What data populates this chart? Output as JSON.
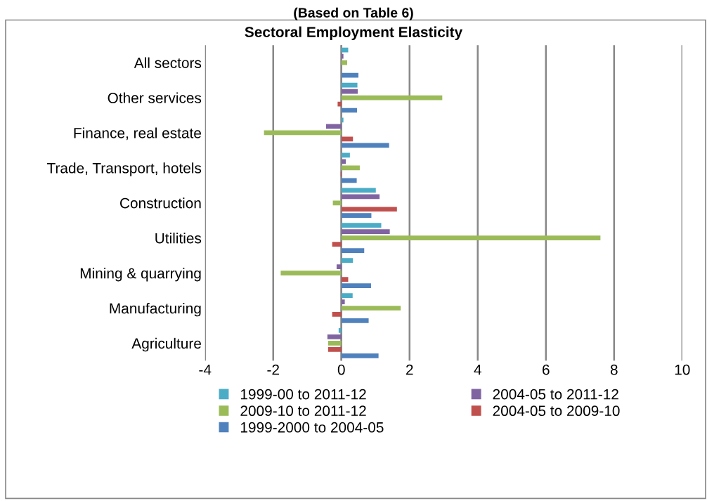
{
  "chart_data": {
    "type": "bar",
    "orientation": "horizontal",
    "title": "Sectoral Employment Elasticity",
    "annotations": [
      "(Based on Table 6)"
    ],
    "categories": [
      "All sectors",
      "Other services",
      "Finance, real estate",
      "Trade, Transport, hotels",
      "Construction",
      "Utilities",
      "Mining & quarrying",
      "Manufacturing",
      "Agriculture"
    ],
    "series": [
      {
        "name": "1999-00 to 2011-12",
        "color": "#4bacc6",
        "values": [
          0.2,
          0.47,
          0.06,
          0.25,
          1.01,
          1.17,
          0.34,
          0.33,
          -0.08
        ]
      },
      {
        "name": "2004-05 to 2011-12",
        "color": "#8064a2",
        "values": [
          0.06,
          0.48,
          -0.45,
          0.13,
          1.12,
          1.42,
          -0.14,
          0.1,
          -0.41
        ]
      },
      {
        "name": "2009-10 to 2011-12",
        "color": "#9bbb59",
        "values": [
          0.17,
          2.96,
          -2.27,
          0.54,
          -0.25,
          7.6,
          -1.78,
          1.74,
          -0.39
        ]
      },
      {
        "name": "2004-05 to 2009-10",
        "color": "#c0504d",
        "values": [
          null,
          -0.11,
          0.34,
          -0.02,
          1.63,
          -0.27,
          0.2,
          -0.27,
          -0.39
        ]
      },
      {
        "name": "1999-2000 to 2004-05",
        "color": "#4f81bd",
        "values": [
          0.5,
          0.46,
          1.4,
          0.45,
          0.88,
          0.67,
          0.87,
          0.8,
          1.09
        ]
      }
    ],
    "xlim": [
      -4,
      10
    ],
    "xticks": [
      -4,
      -2,
      0,
      2,
      4,
      6,
      8,
      10
    ],
    "grid": "x",
    "legend": "bottom"
  }
}
